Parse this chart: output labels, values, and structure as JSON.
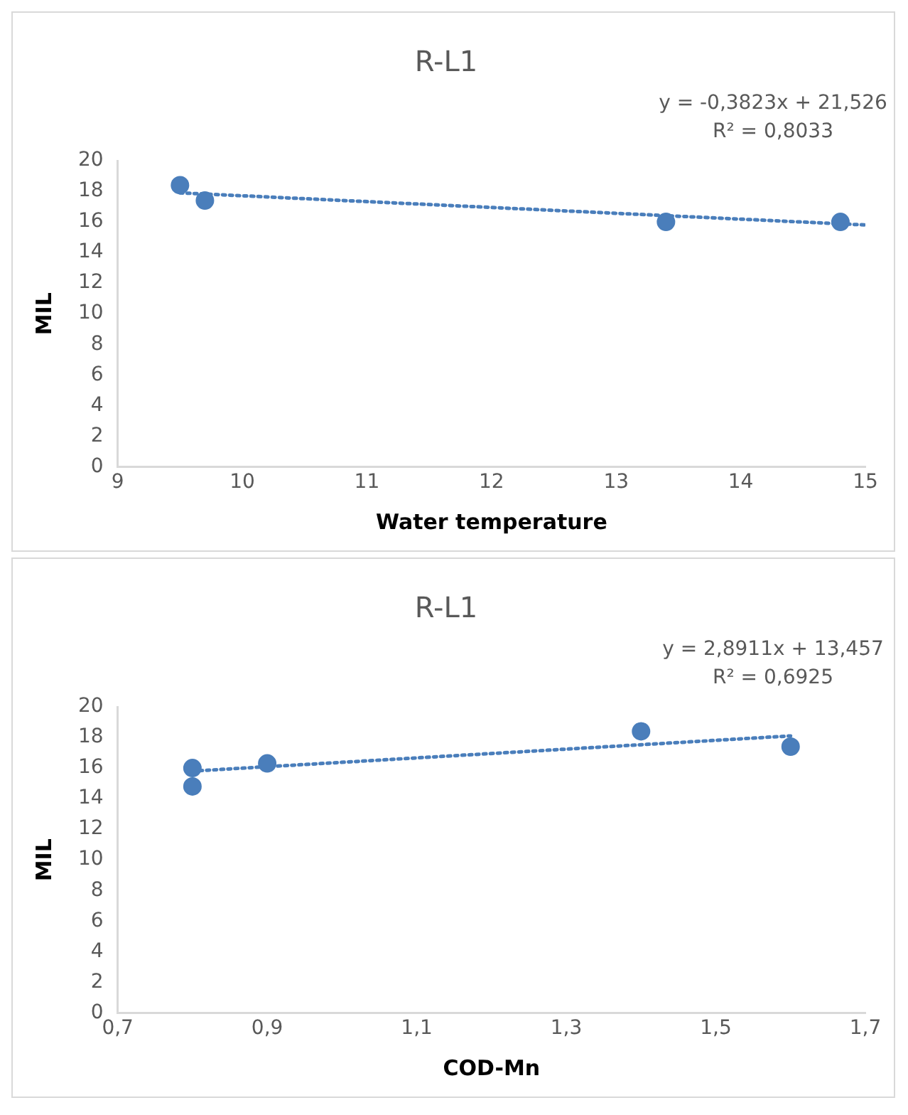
{
  "chart_data": [
    {
      "type": "scatter",
      "title": "R-L1",
      "xlabel": "Water temperature",
      "ylabel": "MIL",
      "annotations": [
        "y = -0,3823x + 21,526",
        "R² = 0,8033"
      ],
      "marker": "circle",
      "xlim": [
        9,
        15
      ],
      "xticks": [
        9,
        10,
        11,
        12,
        13,
        14,
        15
      ],
      "ylim": [
        0,
        20
      ],
      "yticks": [
        0,
        2,
        4,
        6,
        8,
        10,
        12,
        14,
        16,
        18,
        20
      ],
      "series": [
        {
          "color": "#4a7ebb",
          "x": [
            9.5,
            9.7,
            13.4,
            14.8
          ],
          "values": [
            18.4,
            17.4,
            16.0,
            16.0
          ]
        },
        {
          "type": "line",
          "color": "#4a7ebb",
          "marker": "none",
          "line_style": "dotted",
          "x": [
            9.5,
            15
          ],
          "values": [
            17.9,
            15.8
          ]
        }
      ]
    },
    {
      "type": "scatter",
      "title": "R-L1",
      "xlabel": "COD-Mn",
      "ylabel": "MIL",
      "annotations": [
        "y = 2,8911x + 13,457",
        "R² = 0,6925"
      ],
      "marker": "circle",
      "xlim": [
        0.7,
        1.7
      ],
      "xticks": [
        {
          "value": 0.7,
          "label": "0,7"
        },
        {
          "value": 0.9,
          "label": "0,9"
        },
        {
          "value": 1.1,
          "label": "1,1"
        },
        {
          "value": 1.3,
          "label": "1,3"
        },
        {
          "value": 1.5,
          "label": "1,5"
        },
        {
          "value": 1.7,
          "label": "1,7"
        }
      ],
      "ylim": [
        0,
        20
      ],
      "yticks": [
        0,
        2,
        4,
        6,
        8,
        10,
        12,
        14,
        16,
        18,
        20
      ],
      "series": [
        {
          "color": "#4a7ebb",
          "x": [
            0.8,
            0.8,
            0.9,
            1.4,
            1.6
          ],
          "values": [
            16.0,
            14.8,
            16.3,
            18.4,
            17.4
          ]
        },
        {
          "type": "line",
          "color": "#4a7ebb",
          "marker": "none",
          "line_style": "dotted",
          "x": [
            0.8,
            1.6
          ],
          "values": [
            15.8,
            18.1
          ]
        }
      ]
    }
  ]
}
